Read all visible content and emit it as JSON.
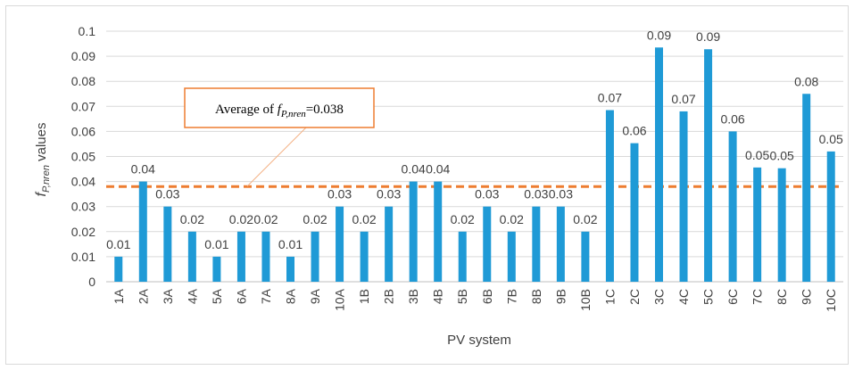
{
  "chart_data": {
    "type": "bar",
    "categories": [
      "1A",
      "2A",
      "3A",
      "4A",
      "5A",
      "6A",
      "7A",
      "8A",
      "9A",
      "10A",
      "1B",
      "2B",
      "3B",
      "4B",
      "5B",
      "6B",
      "7B",
      "8B",
      "9B",
      "10B",
      "1C",
      "2C",
      "3C",
      "4C",
      "5C",
      "6C",
      "7C",
      "8C",
      "9C",
      "10C"
    ],
    "values": [
      0.01,
      0.04,
      0.03,
      0.02,
      0.01,
      0.02,
      0.02,
      0.01,
      0.02,
      0.03,
      0.02,
      0.03,
      0.04,
      0.04,
      0.02,
      0.03,
      0.02,
      0.03,
      0.03,
      0.02,
      0.0685,
      0.0553,
      0.0935,
      0.068,
      0.0928,
      0.06,
      0.0456,
      0.0453,
      0.075,
      0.052
    ],
    "data_labels": [
      "0.01",
      "0.04",
      "0.03",
      "0.02",
      "0.01",
      "0.02",
      "0.02",
      "0.01",
      "0.02",
      "0.03",
      "0.02",
      "0.03",
      "0.04",
      "0.04",
      "0.02",
      "0.03",
      "0.02",
      "0.03",
      "0.03",
      "0.02",
      "0.07",
      "0.06",
      "0.09",
      "0.07",
      "0.09",
      "0.06",
      "0.05",
      "0.05",
      "0.08",
      "0.05"
    ],
    "yticks": [
      "0",
      "0.01",
      "0.02",
      "0.03",
      "0.04",
      "0.05",
      "0.06",
      "0.07",
      "0.08",
      "0.09",
      "0.1"
    ],
    "ylim": [
      0,
      0.1
    ],
    "xlabel": "PV system",
    "ylabel_main": "f",
    "ylabel_sub": "P,nren",
    "ylabel_tail": " values",
    "bar_color": "#1f9ad6",
    "average": {
      "value": 0.038,
      "line_color": "#ed7d31",
      "label_prefix": "Average of ",
      "label_main": "f",
      "label_sub": "P,nren",
      "label_suffix": "=0.038"
    },
    "grid": true
  }
}
